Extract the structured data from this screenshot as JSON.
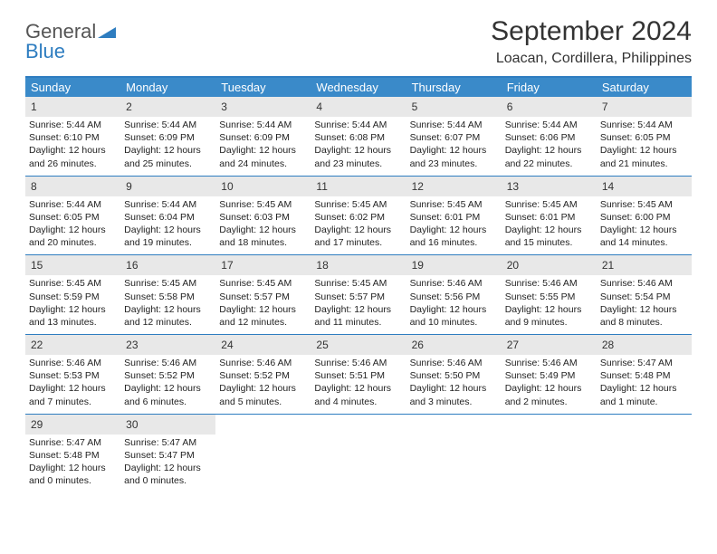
{
  "colors": {
    "accent": "#2e7dc0",
    "header_bg": "#3a8ac9",
    "daynum_bg": "#e8e8e8",
    "text": "#333333",
    "cell_text": "#222222",
    "white": "#ffffff"
  },
  "logo": {
    "word1": "General",
    "word2": "Blue"
  },
  "title": "September 2024",
  "location": "Loacan, Cordillera, Philippines",
  "weekdays": [
    "Sunday",
    "Monday",
    "Tuesday",
    "Wednesday",
    "Thursday",
    "Friday",
    "Saturday"
  ],
  "labels": {
    "sunrise": "Sunrise:",
    "sunset": "Sunset:",
    "daylight": "Daylight:"
  },
  "weeks": [
    [
      {
        "n": "1",
        "sr": "5:44 AM",
        "ss": "6:10 PM",
        "dl": "12 hours and 26 minutes."
      },
      {
        "n": "2",
        "sr": "5:44 AM",
        "ss": "6:09 PM",
        "dl": "12 hours and 25 minutes."
      },
      {
        "n": "3",
        "sr": "5:44 AM",
        "ss": "6:09 PM",
        "dl": "12 hours and 24 minutes."
      },
      {
        "n": "4",
        "sr": "5:44 AM",
        "ss": "6:08 PM",
        "dl": "12 hours and 23 minutes."
      },
      {
        "n": "5",
        "sr": "5:44 AM",
        "ss": "6:07 PM",
        "dl": "12 hours and 23 minutes."
      },
      {
        "n": "6",
        "sr": "5:44 AM",
        "ss": "6:06 PM",
        "dl": "12 hours and 22 minutes."
      },
      {
        "n": "7",
        "sr": "5:44 AM",
        "ss": "6:05 PM",
        "dl": "12 hours and 21 minutes."
      }
    ],
    [
      {
        "n": "8",
        "sr": "5:44 AM",
        "ss": "6:05 PM",
        "dl": "12 hours and 20 minutes."
      },
      {
        "n": "9",
        "sr": "5:44 AM",
        "ss": "6:04 PM",
        "dl": "12 hours and 19 minutes."
      },
      {
        "n": "10",
        "sr": "5:45 AM",
        "ss": "6:03 PM",
        "dl": "12 hours and 18 minutes."
      },
      {
        "n": "11",
        "sr": "5:45 AM",
        "ss": "6:02 PM",
        "dl": "12 hours and 17 minutes."
      },
      {
        "n": "12",
        "sr": "5:45 AM",
        "ss": "6:01 PM",
        "dl": "12 hours and 16 minutes."
      },
      {
        "n": "13",
        "sr": "5:45 AM",
        "ss": "6:01 PM",
        "dl": "12 hours and 15 minutes."
      },
      {
        "n": "14",
        "sr": "5:45 AM",
        "ss": "6:00 PM",
        "dl": "12 hours and 14 minutes."
      }
    ],
    [
      {
        "n": "15",
        "sr": "5:45 AM",
        "ss": "5:59 PM",
        "dl": "12 hours and 13 minutes."
      },
      {
        "n": "16",
        "sr": "5:45 AM",
        "ss": "5:58 PM",
        "dl": "12 hours and 12 minutes."
      },
      {
        "n": "17",
        "sr": "5:45 AM",
        "ss": "5:57 PM",
        "dl": "12 hours and 12 minutes."
      },
      {
        "n": "18",
        "sr": "5:45 AM",
        "ss": "5:57 PM",
        "dl": "12 hours and 11 minutes."
      },
      {
        "n": "19",
        "sr": "5:46 AM",
        "ss": "5:56 PM",
        "dl": "12 hours and 10 minutes."
      },
      {
        "n": "20",
        "sr": "5:46 AM",
        "ss": "5:55 PM",
        "dl": "12 hours and 9 minutes."
      },
      {
        "n": "21",
        "sr": "5:46 AM",
        "ss": "5:54 PM",
        "dl": "12 hours and 8 minutes."
      }
    ],
    [
      {
        "n": "22",
        "sr": "5:46 AM",
        "ss": "5:53 PM",
        "dl": "12 hours and 7 minutes."
      },
      {
        "n": "23",
        "sr": "5:46 AM",
        "ss": "5:52 PM",
        "dl": "12 hours and 6 minutes."
      },
      {
        "n": "24",
        "sr": "5:46 AM",
        "ss": "5:52 PM",
        "dl": "12 hours and 5 minutes."
      },
      {
        "n": "25",
        "sr": "5:46 AM",
        "ss": "5:51 PM",
        "dl": "12 hours and 4 minutes."
      },
      {
        "n": "26",
        "sr": "5:46 AM",
        "ss": "5:50 PM",
        "dl": "12 hours and 3 minutes."
      },
      {
        "n": "27",
        "sr": "5:46 AM",
        "ss": "5:49 PM",
        "dl": "12 hours and 2 minutes."
      },
      {
        "n": "28",
        "sr": "5:47 AM",
        "ss": "5:48 PM",
        "dl": "12 hours and 1 minute."
      }
    ],
    [
      {
        "n": "29",
        "sr": "5:47 AM",
        "ss": "5:48 PM",
        "dl": "12 hours and 0 minutes."
      },
      {
        "n": "30",
        "sr": "5:47 AM",
        "ss": "5:47 PM",
        "dl": "12 hours and 0 minutes."
      },
      null,
      null,
      null,
      null,
      null
    ]
  ]
}
